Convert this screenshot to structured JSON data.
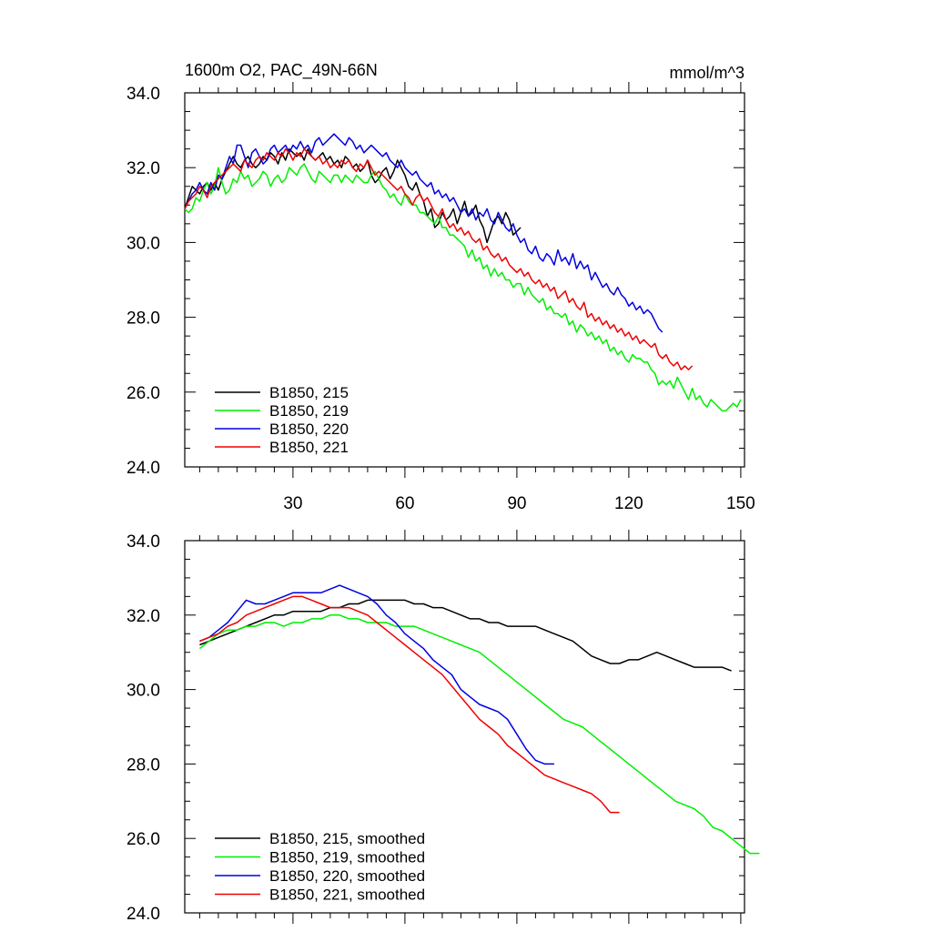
{
  "colors": {
    "215": "#000000",
    "219": "#00ee00",
    "220": "#0000e0",
    "221": "#ee0000"
  },
  "chart_data": [
    {
      "type": "line",
      "title": "1600m O2, PAC_49N-66N",
      "units": "mmol/m^3",
      "xlim": [
        1,
        151
      ],
      "ylim": [
        24,
        34
      ],
      "x_ticks": [
        30,
        60,
        90,
        120,
        150
      ],
      "x_tick_labels": [
        "30",
        "60",
        "90",
        "120",
        "150"
      ],
      "y_ticks": [
        24,
        26,
        28,
        30,
        32,
        34
      ],
      "y_tick_labels": [
        "24.0",
        "26.0",
        "28.0",
        "30.0",
        "32.0",
        "34.0"
      ],
      "legend_position": "bottom-left",
      "series": [
        {
          "name": "B1850, 215",
          "color": "#000000",
          "x_start": 1,
          "values": [
            30.9,
            31.2,
            31.5,
            31.4,
            31.3,
            31.5,
            31.6,
            31.4,
            31.6,
            31.4,
            31.7,
            31.9,
            32.1,
            32.3,
            32.1,
            32.0,
            32.2,
            32.3,
            32.1,
            32.0,
            32.1,
            32.3,
            32.2,
            32.4,
            32.3,
            32.1,
            32.4,
            32.2,
            32.5,
            32.4,
            32.3,
            32.4,
            32.2,
            32.5,
            32.3,
            32.2,
            32.3,
            32.4,
            32.2,
            32.3,
            32.1,
            32.2,
            32.0,
            32.3,
            32.2,
            32.0,
            32.1,
            31.9,
            32.0,
            32.2,
            31.8,
            31.6,
            31.7,
            31.9,
            32.0,
            31.7,
            31.9,
            32.2,
            32.0,
            31.8,
            31.5,
            31.4,
            31.6,
            31.3,
            31.1,
            30.7,
            30.9,
            30.4,
            30.5,
            30.8,
            30.6,
            30.7,
            30.9,
            30.5,
            30.8,
            31.1,
            30.7,
            30.8,
            31.0,
            30.6,
            30.4,
            30.0,
            30.3,
            30.6,
            30.7,
            30.5,
            30.8,
            30.6,
            30.2,
            30.3,
            30.4
          ]
        },
        {
          "name": "B1850, 219",
          "color": "#00ee00",
          "x_start": 1,
          "values": [
            30.9,
            30.8,
            30.9,
            31.2,
            31.1,
            31.4,
            31.6,
            31.3,
            31.5,
            32.0,
            31.6,
            31.3,
            31.4,
            31.7,
            31.6,
            31.9,
            31.7,
            31.8,
            31.5,
            31.6,
            31.7,
            31.9,
            31.8,
            31.5,
            31.7,
            31.8,
            31.6,
            31.7,
            32.0,
            31.9,
            31.8,
            32.0,
            32.1,
            31.9,
            31.7,
            31.6,
            31.9,
            31.8,
            31.7,
            31.6,
            31.8,
            31.8,
            31.6,
            31.8,
            31.7,
            31.6,
            31.8,
            31.7,
            31.6,
            31.6,
            31.8,
            31.9,
            31.7,
            31.5,
            31.4,
            31.2,
            31.3,
            31.1,
            31.0,
            31.3,
            31.1,
            31.0,
            31.0,
            30.8,
            30.8,
            30.7,
            30.6,
            30.5,
            30.7,
            30.4,
            30.4,
            30.2,
            30.2,
            30.1,
            30.0,
            29.9,
            29.6,
            29.8,
            29.5,
            29.6,
            29.3,
            29.4,
            29.1,
            29.3,
            29.1,
            29.2,
            29.0,
            29.0,
            28.8,
            28.9,
            28.9,
            28.6,
            28.8,
            28.6,
            28.5,
            28.4,
            28.5,
            28.2,
            28.3,
            28.1,
            28.1,
            28.0,
            28.1,
            27.8,
            27.9,
            27.6,
            27.8,
            27.7,
            27.5,
            27.6,
            27.4,
            27.5,
            27.3,
            27.4,
            27.1,
            27.2,
            27.0,
            27.1,
            26.9,
            26.8,
            27.0,
            26.9,
            26.9,
            26.8,
            26.8,
            26.6,
            26.5,
            26.2,
            26.3,
            26.2,
            26.3,
            26.1,
            26.4,
            26.2,
            26.0,
            25.8,
            26.1,
            25.8,
            25.9,
            25.7,
            25.6,
            25.8,
            25.7,
            25.6,
            25.5,
            25.5,
            25.6,
            25.7,
            25.6,
            25.8
          ]
        },
        {
          "name": "B1850, 220",
          "color": "#0000e0",
          "x_start": 1,
          "values": [
            30.9,
            31.1,
            31.3,
            31.4,
            31.6,
            31.4,
            31.3,
            31.6,
            31.4,
            31.8,
            31.7,
            32.0,
            32.3,
            32.1,
            32.6,
            32.6,
            32.3,
            32.0,
            32.4,
            32.5,
            32.3,
            32.1,
            32.2,
            32.5,
            32.6,
            32.4,
            32.5,
            32.6,
            32.4,
            32.6,
            32.5,
            32.7,
            32.5,
            32.6,
            32.4,
            32.7,
            32.8,
            32.6,
            32.7,
            32.8,
            32.9,
            32.8,
            32.7,
            32.6,
            32.8,
            32.7,
            32.5,
            32.6,
            32.4,
            32.5,
            32.6,
            32.5,
            32.4,
            32.3,
            32.4,
            32.2,
            32.1,
            32.0,
            32.2,
            32.0,
            31.9,
            31.8,
            31.9,
            31.7,
            31.6,
            31.5,
            31.6,
            31.3,
            31.4,
            31.2,
            31.3,
            31.1,
            31.2,
            31.0,
            30.8,
            30.9,
            30.7,
            30.9,
            30.6,
            30.8,
            30.7,
            30.9,
            30.6,
            30.5,
            30.8,
            30.6,
            30.4,
            30.3,
            30.5,
            30.2,
            30.0,
            30.1,
            29.8,
            29.7,
            29.9,
            29.6,
            29.5,
            29.7,
            29.6,
            29.4,
            29.8,
            29.5,
            29.6,
            29.4,
            29.7,
            29.3,
            29.5,
            29.3,
            29.4,
            29.0,
            29.2,
            29.0,
            28.8,
            28.9,
            28.7,
            28.6,
            28.8,
            28.6,
            28.5,
            28.3,
            28.4,
            28.2,
            28.3,
            28.1,
            28.2,
            28.1,
            27.9,
            27.7,
            27.6
          ]
        },
        {
          "name": "B1850, 221",
          "color": "#ee0000",
          "x_start": 1,
          "values": [
            30.9,
            31.1,
            31.2,
            31.3,
            31.5,
            31.4,
            31.2,
            31.5,
            31.6,
            31.7,
            31.8,
            31.9,
            32.0,
            32.1,
            32.0,
            31.9,
            32.2,
            32.1,
            32.0,
            32.2,
            32.3,
            32.2,
            32.4,
            32.3,
            32.2,
            32.4,
            32.3,
            32.5,
            32.4,
            32.2,
            32.4,
            32.3,
            32.5,
            32.4,
            32.3,
            32.2,
            32.3,
            32.1,
            32.2,
            32.0,
            32.1,
            32.0,
            32.2,
            32.1,
            32.2,
            32.0,
            31.9,
            32.1,
            32.0,
            32.2,
            32.0,
            31.8,
            31.9,
            31.8,
            31.7,
            31.6,
            31.5,
            31.4,
            31.5,
            31.3,
            31.2,
            31.0,
            31.2,
            31.3,
            31.1,
            31.2,
            31.0,
            30.8,
            30.7,
            30.9,
            30.6,
            30.4,
            30.5,
            30.3,
            30.4,
            30.2,
            30.3,
            30.1,
            30.0,
            30.1,
            29.8,
            29.9,
            29.7,
            29.6,
            29.7,
            29.5,
            29.6,
            29.4,
            29.3,
            29.2,
            29.3,
            29.1,
            29.2,
            29.0,
            28.9,
            29.0,
            28.8,
            28.9,
            28.7,
            28.8,
            28.5,
            28.6,
            28.7,
            28.4,
            28.5,
            28.3,
            28.2,
            28.4,
            28.0,
            28.1,
            27.9,
            28.0,
            27.8,
            27.9,
            27.7,
            27.8,
            27.6,
            27.7,
            27.5,
            27.6,
            27.4,
            27.5,
            27.3,
            27.4,
            27.3,
            27.2,
            27.3,
            27.0,
            26.9,
            27.0,
            26.8,
            26.7,
            26.8,
            26.6,
            26.7,
            26.6,
            26.7
          ]
        }
      ]
    },
    {
      "type": "line",
      "title": "",
      "xlim": [
        1,
        151
      ],
      "ylim": [
        24,
        34
      ],
      "y_ticks": [
        24,
        26,
        28,
        30,
        32,
        34
      ],
      "y_tick_labels": [
        "24.0",
        "26.0",
        "28.0",
        "30.0",
        "32.0",
        "34.0"
      ],
      "x_ticks": [
        30,
        60,
        90,
        120,
        150
      ],
      "legend_position": "bottom-left",
      "series": [
        {
          "name": "B1850, 215, smoothed",
          "color": "#000000",
          "x_start": 5,
          "values": [
            31.2,
            31.3,
            31.4,
            31.5,
            31.6,
            31.7,
            31.8,
            31.9,
            32.0,
            32.0,
            32.1,
            32.1,
            32.1,
            32.1,
            32.2,
            32.2,
            32.3,
            32.3,
            32.4,
            32.4,
            32.4,
            32.4,
            32.4,
            32.3,
            32.3,
            32.2,
            32.2,
            32.1,
            32.0,
            31.9,
            31.9,
            31.8,
            31.8,
            31.7,
            31.7,
            31.7,
            31.7,
            31.6,
            31.5,
            31.4,
            31.3,
            31.1,
            30.9,
            30.8,
            30.7,
            30.7,
            30.8,
            30.8,
            30.9,
            31.0,
            30.9,
            30.8,
            30.7,
            30.6,
            30.6,
            30.6,
            30.6,
            30.5
          ]
        },
        {
          "name": "B1850, 219, smoothed",
          "color": "#00ee00",
          "x_start": 5,
          "values": [
            31.1,
            31.3,
            31.5,
            31.6,
            31.6,
            31.7,
            31.7,
            31.8,
            31.8,
            31.7,
            31.8,
            31.8,
            31.9,
            31.9,
            32.0,
            32.0,
            31.9,
            31.9,
            31.8,
            31.8,
            31.8,
            31.7,
            31.7,
            31.7,
            31.6,
            31.5,
            31.4,
            31.3,
            31.2,
            31.1,
            31.0,
            30.8,
            30.6,
            30.4,
            30.2,
            30.0,
            29.8,
            29.6,
            29.4,
            29.2,
            29.1,
            29.0,
            28.8,
            28.6,
            28.4,
            28.2,
            28.0,
            27.8,
            27.6,
            27.4,
            27.2,
            27.0,
            26.9,
            26.8,
            26.6,
            26.3,
            26.2,
            26.0,
            25.8,
            25.6,
            25.6
          ]
        },
        {
          "name": "B1850, 220, smoothed",
          "color": "#0000e0",
          "x_start": 5,
          "values": [
            31.3,
            31.4,
            31.6,
            31.8,
            32.1,
            32.4,
            32.3,
            32.3,
            32.4,
            32.5,
            32.6,
            32.6,
            32.6,
            32.6,
            32.7,
            32.8,
            32.7,
            32.6,
            32.5,
            32.3,
            32.0,
            31.8,
            31.5,
            31.3,
            31.1,
            30.8,
            30.6,
            30.4,
            30.0,
            29.8,
            29.6,
            29.5,
            29.4,
            29.2,
            28.8,
            28.4,
            28.1,
            28.0,
            28.0
          ]
        },
        {
          "name": "B1850, 221, smoothed",
          "color": "#ee0000",
          "x_start": 5,
          "values": [
            31.3,
            31.4,
            31.5,
            31.7,
            31.8,
            32.0,
            32.1,
            32.2,
            32.3,
            32.4,
            32.5,
            32.5,
            32.4,
            32.3,
            32.2,
            32.2,
            32.2,
            32.1,
            32.0,
            31.8,
            31.6,
            31.4,
            31.2,
            31.0,
            30.8,
            30.6,
            30.4,
            30.1,
            29.8,
            29.5,
            29.2,
            29.0,
            28.8,
            28.5,
            28.3,
            28.1,
            27.9,
            27.7,
            27.6,
            27.5,
            27.4,
            27.3,
            27.2,
            27.0,
            26.7,
            26.7
          ]
        }
      ]
    }
  ]
}
